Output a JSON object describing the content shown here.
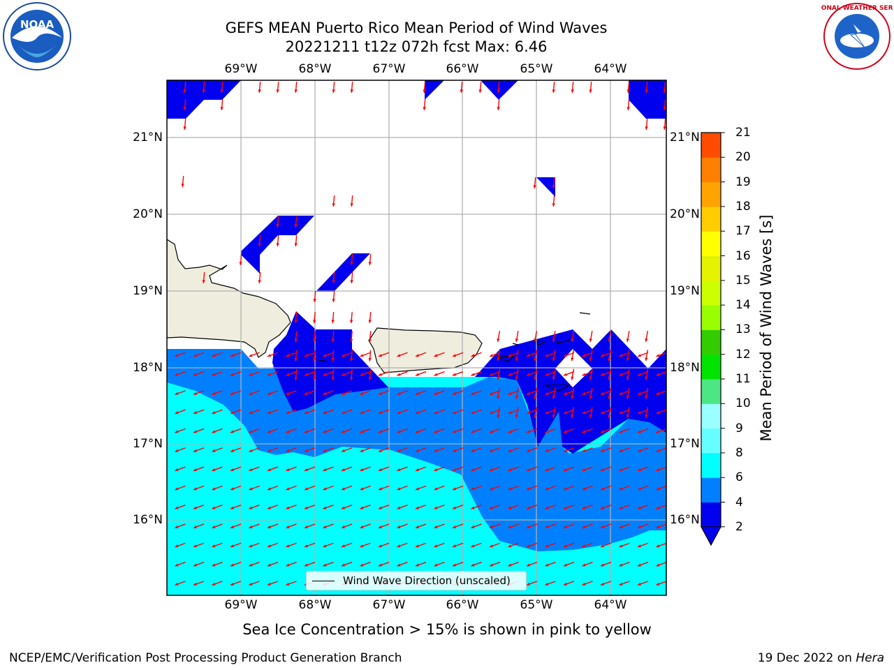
{
  "title": {
    "line1": "GEFS MEAN Puerto Rico Mean Period of Wind Waves",
    "line2": "20221211 t12z 072h fcst   Max: 6.46"
  },
  "longitude_labels": [
    "69°W",
    "68°W",
    "67°W",
    "66°W",
    "65°W",
    "64°W"
  ],
  "latitude_labels": [
    "21°N",
    "20°N",
    "19°N",
    "18°N",
    "17°N",
    "16°N"
  ],
  "colorbar": {
    "label": "Mean Period of Wind Waves [s]",
    "ticks": [
      "2",
      "4",
      "6",
      "8",
      "9",
      "10",
      "11",
      "12",
      "13",
      "14",
      "15",
      "16",
      "17",
      "18",
      "19",
      "20",
      "21"
    ],
    "colors": [
      "#0000ee",
      "#0080ff",
      "#00ffff",
      "#66ffff",
      "#99ffff",
      "#4ce684",
      "#00e400",
      "#33cc00",
      "#99ff00",
      "#ccff00",
      "#e5f200",
      "#ffff00",
      "#ffcc00",
      "#ffa300",
      "#ff7f00",
      "#ff4c00",
      "#ff1a00",
      "#ff0000"
    ],
    "below_min_color": "#0000ee"
  },
  "legend": {
    "label": "Wind Wave Direction (unscaled)"
  },
  "footnote": "Sea Ice Concentration > 15% is shown in pink to yellow",
  "credit": "NCEP/EMC/Verification Post Processing Product Generation Branch",
  "date": {
    "text": "19 Dec 2022 on ",
    "host": "Hera"
  },
  "logos": {
    "left": "NOAA",
    "right": "NATIONAL WEATHER SERVICE"
  },
  "colors": {
    "land": "#efedde",
    "blue": "#0000ee",
    "mid_blue": "#0080ff",
    "cyan": "#00ffff",
    "arrow": "#ff0000",
    "grid": "#b0b0b0"
  }
}
